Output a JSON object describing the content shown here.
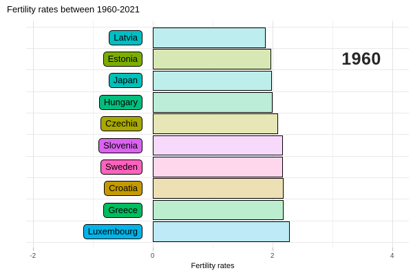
{
  "title": "Fertility rates between 1960-2021",
  "year_label": "1960",
  "axis": {
    "x_label": "Fertility rates",
    "tick_labels": [
      "-2",
      "0",
      "2",
      "4"
    ],
    "tick_values": [
      -2,
      0,
      2,
      4
    ],
    "gridline_values": [
      -2,
      -1,
      0,
      1,
      2,
      3,
      4
    ]
  },
  "chart_data": {
    "type": "bar",
    "orientation": "horizontal",
    "title": "Fertility rates between 1960-2021",
    "xlabel": "Fertility rates",
    "ylabel": "",
    "xlim": [
      -2.1,
      4.3
    ],
    "grid": true,
    "legend": false,
    "year_annotation": "1960",
    "categories": [
      "Latvia",
      "Estonia",
      "Japan",
      "Hungary",
      "Czechia",
      "Slovenia",
      "Sweden",
      "Croatia",
      "Greece",
      "Luxembourg"
    ],
    "values": [
      1.89,
      1.98,
      1.99,
      2.0,
      2.1,
      2.18,
      2.18,
      2.19,
      2.19,
      2.29
    ],
    "label_colors": [
      "#00BFC4",
      "#7CAE00",
      "#00C0B8",
      "#00BE7D",
      "#A8A800",
      "#DB63F0",
      "#FF61BE",
      "#C49A00",
      "#00BD5F",
      "#00B4E8"
    ],
    "bar_colors": [
      "#BDEDEE",
      "#D8E8B4",
      "#BDEEEA",
      "#BBEDD8",
      "#E6E6B6",
      "#F6D9FB",
      "#FFD7ED",
      "#EDE0B4",
      "#BCEDCF",
      "#BEE9F7"
    ]
  },
  "colors": {
    "grid_major": "#e3e3e3",
    "grid_minor": "#f0f0f0",
    "bar_border": "#000000",
    "tick_label": "#4d4d4d",
    "year_text": "#262626"
  }
}
